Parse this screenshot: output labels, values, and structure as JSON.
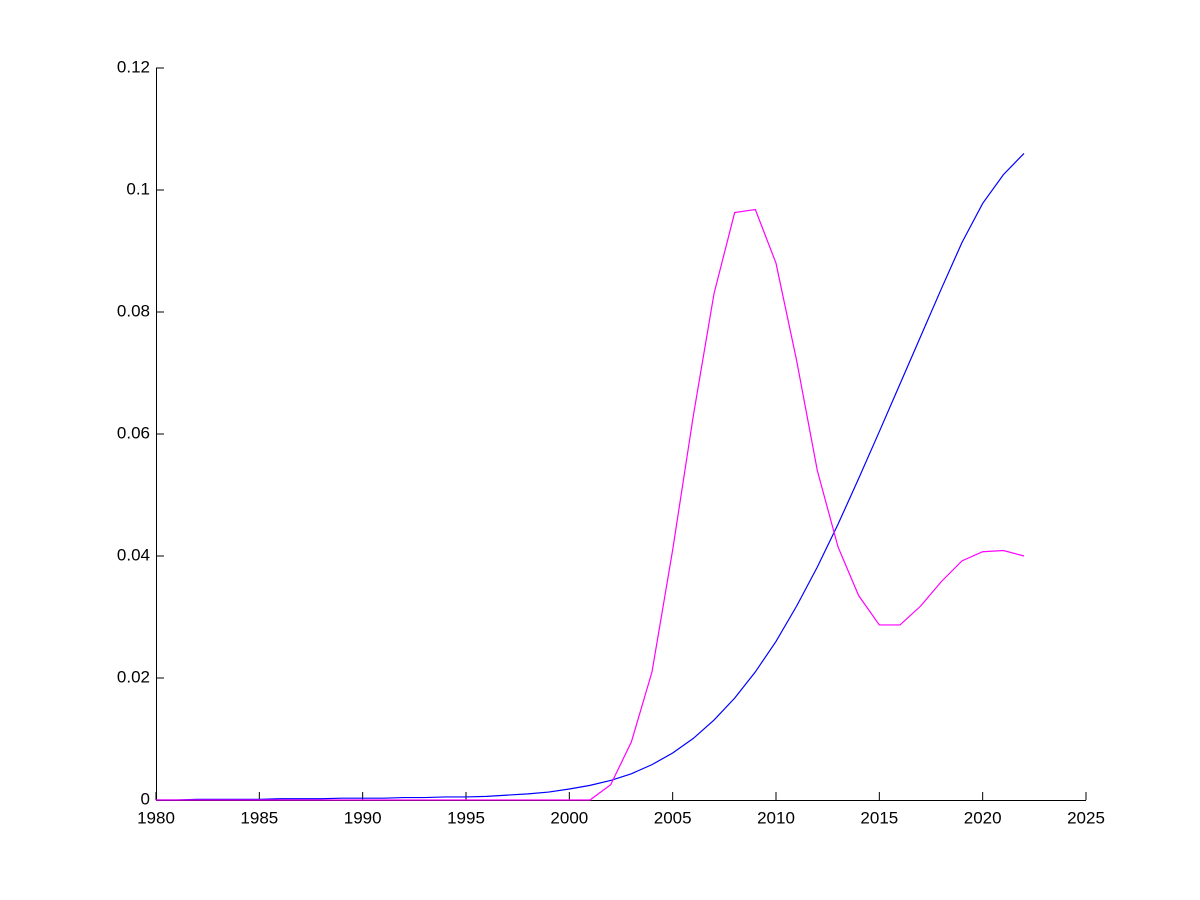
{
  "chart_data": {
    "type": "line",
    "x": [
      1980,
      1981,
      1982,
      1983,
      1984,
      1985,
      1986,
      1987,
      1988,
      1989,
      1990,
      1991,
      1992,
      1993,
      1994,
      1995,
      1996,
      1997,
      1998,
      1999,
      2000,
      2001,
      2002,
      2003,
      2004,
      2005,
      2006,
      2007,
      2008,
      2009,
      2010,
      2011,
      2012,
      2013,
      2014,
      2015,
      2016,
      2017,
      2018,
      2019,
      2020,
      2021,
      2022
    ],
    "series": [
      {
        "color": "#0000ff",
        "values": [
          0,
          0,
          0.0001,
          0.0001,
          0.0001,
          0.0001,
          0.0002,
          0.0002,
          0.0002,
          0.0003,
          0.0003,
          0.0003,
          0.0004,
          0.0004,
          0.0005,
          0.0005,
          0.0006,
          0.0008,
          0.001,
          0.0013,
          0.0018,
          0.0024,
          0.0032,
          0.0043,
          0.0058,
          0.0077,
          0.0101,
          0.0131,
          0.0167,
          0.021,
          0.026,
          0.0318,
          0.0382,
          0.0452,
          0.0527,
          0.0604,
          0.0682,
          0.076,
          0.0838,
          0.0914,
          0.0978,
          0.1025,
          0.106
        ]
      },
      {
        "color": "#ff00ff",
        "values": [
          0,
          0,
          0,
          0,
          0,
          0,
          0,
          0,
          0,
          0,
          0,
          0,
          0,
          0,
          0,
          0,
          0,
          0,
          0,
          0,
          0,
          0,
          0.0025,
          0.0095,
          0.021,
          0.041,
          0.063,
          0.083,
          0.0963,
          0.0968,
          0.088,
          0.072,
          0.054,
          0.0415,
          0.0335,
          0.0287,
          0.0287,
          0.0318,
          0.0358,
          0.0392,
          0.0407,
          0.0409,
          0.04
        ]
      }
    ],
    "xlim": [
      1980,
      2025
    ],
    "xticks": [
      1980,
      1985,
      1990,
      1995,
      2000,
      2005,
      2010,
      2015,
      2020,
      2025
    ],
    "ylim": [
      0,
      0.12
    ],
    "yticks": [
      0,
      0.02,
      0.04,
      0.06,
      0.08,
      0.1,
      0.12
    ]
  }
}
